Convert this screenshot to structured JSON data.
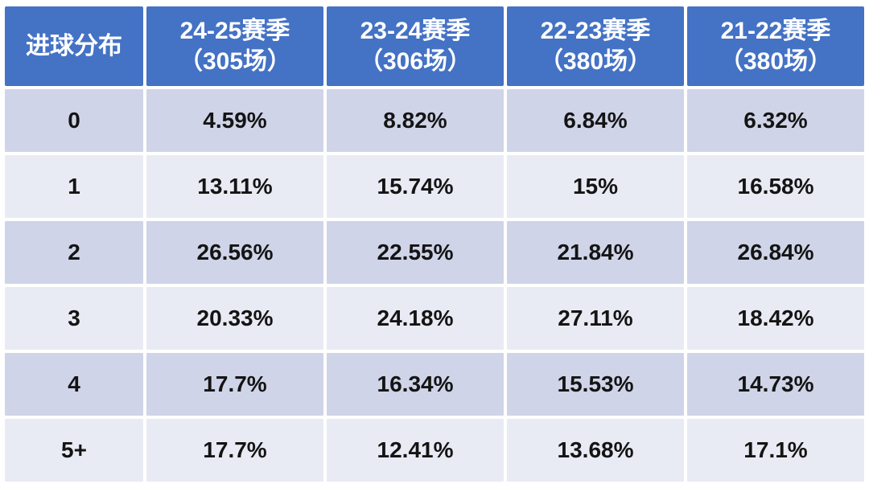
{
  "table": {
    "header_corner": "进球分布",
    "columns": [
      {
        "season": "24-25赛季",
        "matches": "（305场）"
      },
      {
        "season": "23-24赛季",
        "matches": "（306场）"
      },
      {
        "season": "22-23赛季",
        "matches": "（380场）"
      },
      {
        "season": "21-22赛季",
        "matches": "（380场）"
      }
    ],
    "rows": [
      {
        "goals": "0",
        "values": [
          "4.59%",
          "8.82%",
          "6.84%",
          "6.32%"
        ]
      },
      {
        "goals": "1",
        "values": [
          "13.11%",
          "15.74%",
          "15%",
          "16.58%"
        ]
      },
      {
        "goals": "2",
        "values": [
          "26.56%",
          "22.55%",
          "21.84%",
          "26.84%"
        ]
      },
      {
        "goals": "3",
        "values": [
          "20.33%",
          "24.18%",
          "27.11%",
          "18.42%"
        ]
      },
      {
        "goals": "4",
        "values": [
          "17.7%",
          "16.34%",
          "15.53%",
          "14.73%"
        ]
      },
      {
        "goals": "5+",
        "values": [
          "17.7%",
          "12.41%",
          "13.68%",
          "17.1%"
        ]
      }
    ]
  },
  "colors": {
    "header_bg": "#4472C4",
    "header_text": "#FFFFFF",
    "band_dark": "#CFD4E8",
    "band_light": "#E9EBF4",
    "cell_text": "#141414",
    "background": "#FFFFFF"
  },
  "chart_data": {
    "type": "table",
    "title": "进球分布",
    "row_label_header": "进球分布",
    "categories": [
      "0",
      "1",
      "2",
      "3",
      "4",
      "5+"
    ],
    "unit": "percent",
    "series": [
      {
        "name": "24-25赛季（305场）",
        "matches": 305,
        "values": [
          4.59,
          13.11,
          26.56,
          20.33,
          17.7,
          17.7
        ]
      },
      {
        "name": "23-24赛季（306场）",
        "matches": 306,
        "values": [
          8.82,
          15.74,
          22.55,
          24.18,
          16.34,
          12.41
        ]
      },
      {
        "name": "22-23赛季（380场）",
        "matches": 380,
        "values": [
          6.84,
          15.0,
          21.84,
          27.11,
          15.53,
          13.68
        ]
      },
      {
        "name": "21-22赛季（380场）",
        "matches": 380,
        "values": [
          6.32,
          16.58,
          26.84,
          18.42,
          14.73,
          17.1
        ]
      }
    ],
    "layout": {
      "banded_rows": true,
      "header_fill": "#4472C4",
      "grid": "white-gaps"
    }
  }
}
